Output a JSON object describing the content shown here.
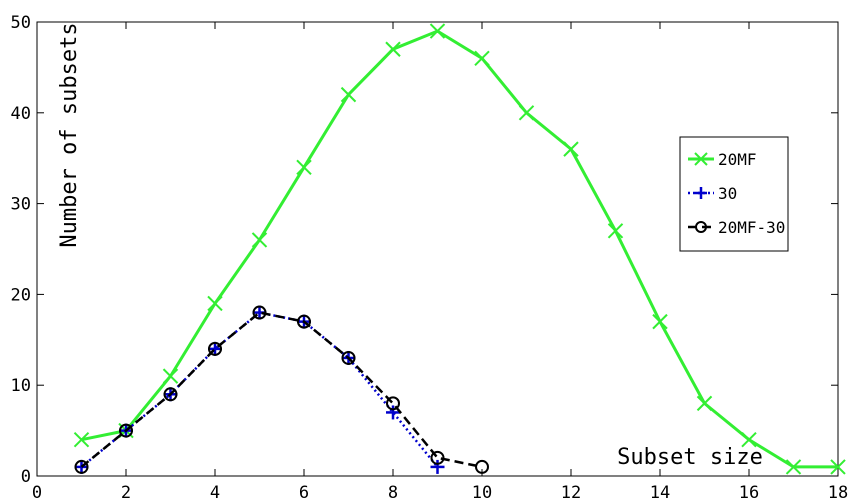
{
  "chart_data": {
    "type": "line",
    "xlabel": "Subset size",
    "ylabel": "Number of subsets",
    "xlim": [
      0,
      18
    ],
    "ylim": [
      0,
      50
    ],
    "xticks": [
      "0",
      "2",
      "4",
      "6",
      "8",
      "10",
      "12",
      "14",
      "16",
      "18"
    ],
    "yticks": [
      "0",
      "10",
      "20",
      "30",
      "40",
      "50"
    ],
    "grid": false,
    "legend_position": "right",
    "series": [
      {
        "name": "20MF",
        "color": "#33ee33",
        "marker": "x",
        "linestyle": "solid",
        "x": [
          1,
          2,
          3,
          4,
          5,
          6,
          7,
          8,
          9,
          10,
          11,
          12,
          13,
          14,
          15,
          16,
          17,
          18
        ],
        "y": [
          4,
          5,
          11,
          19,
          26,
          34,
          42,
          47,
          49,
          46,
          40,
          36,
          27,
          17,
          8,
          4,
          1,
          1
        ]
      },
      {
        "name": "30",
        "color": "#0000cc",
        "marker": "+",
        "linestyle": "dotted",
        "x": [
          1,
          2,
          3,
          4,
          5,
          6,
          7,
          8,
          9
        ],
        "y": [
          1,
          5,
          9,
          14,
          18,
          17,
          13,
          7,
          1
        ]
      },
      {
        "name": "20MF-30",
        "color": "#000000",
        "marker": "o",
        "linestyle": "dashed",
        "x": [
          1,
          2,
          3,
          4,
          5,
          6,
          7,
          8,
          9,
          10
        ],
        "y": [
          1,
          5,
          9,
          14,
          18,
          17,
          13,
          8,
          2,
          1
        ]
      }
    ]
  }
}
